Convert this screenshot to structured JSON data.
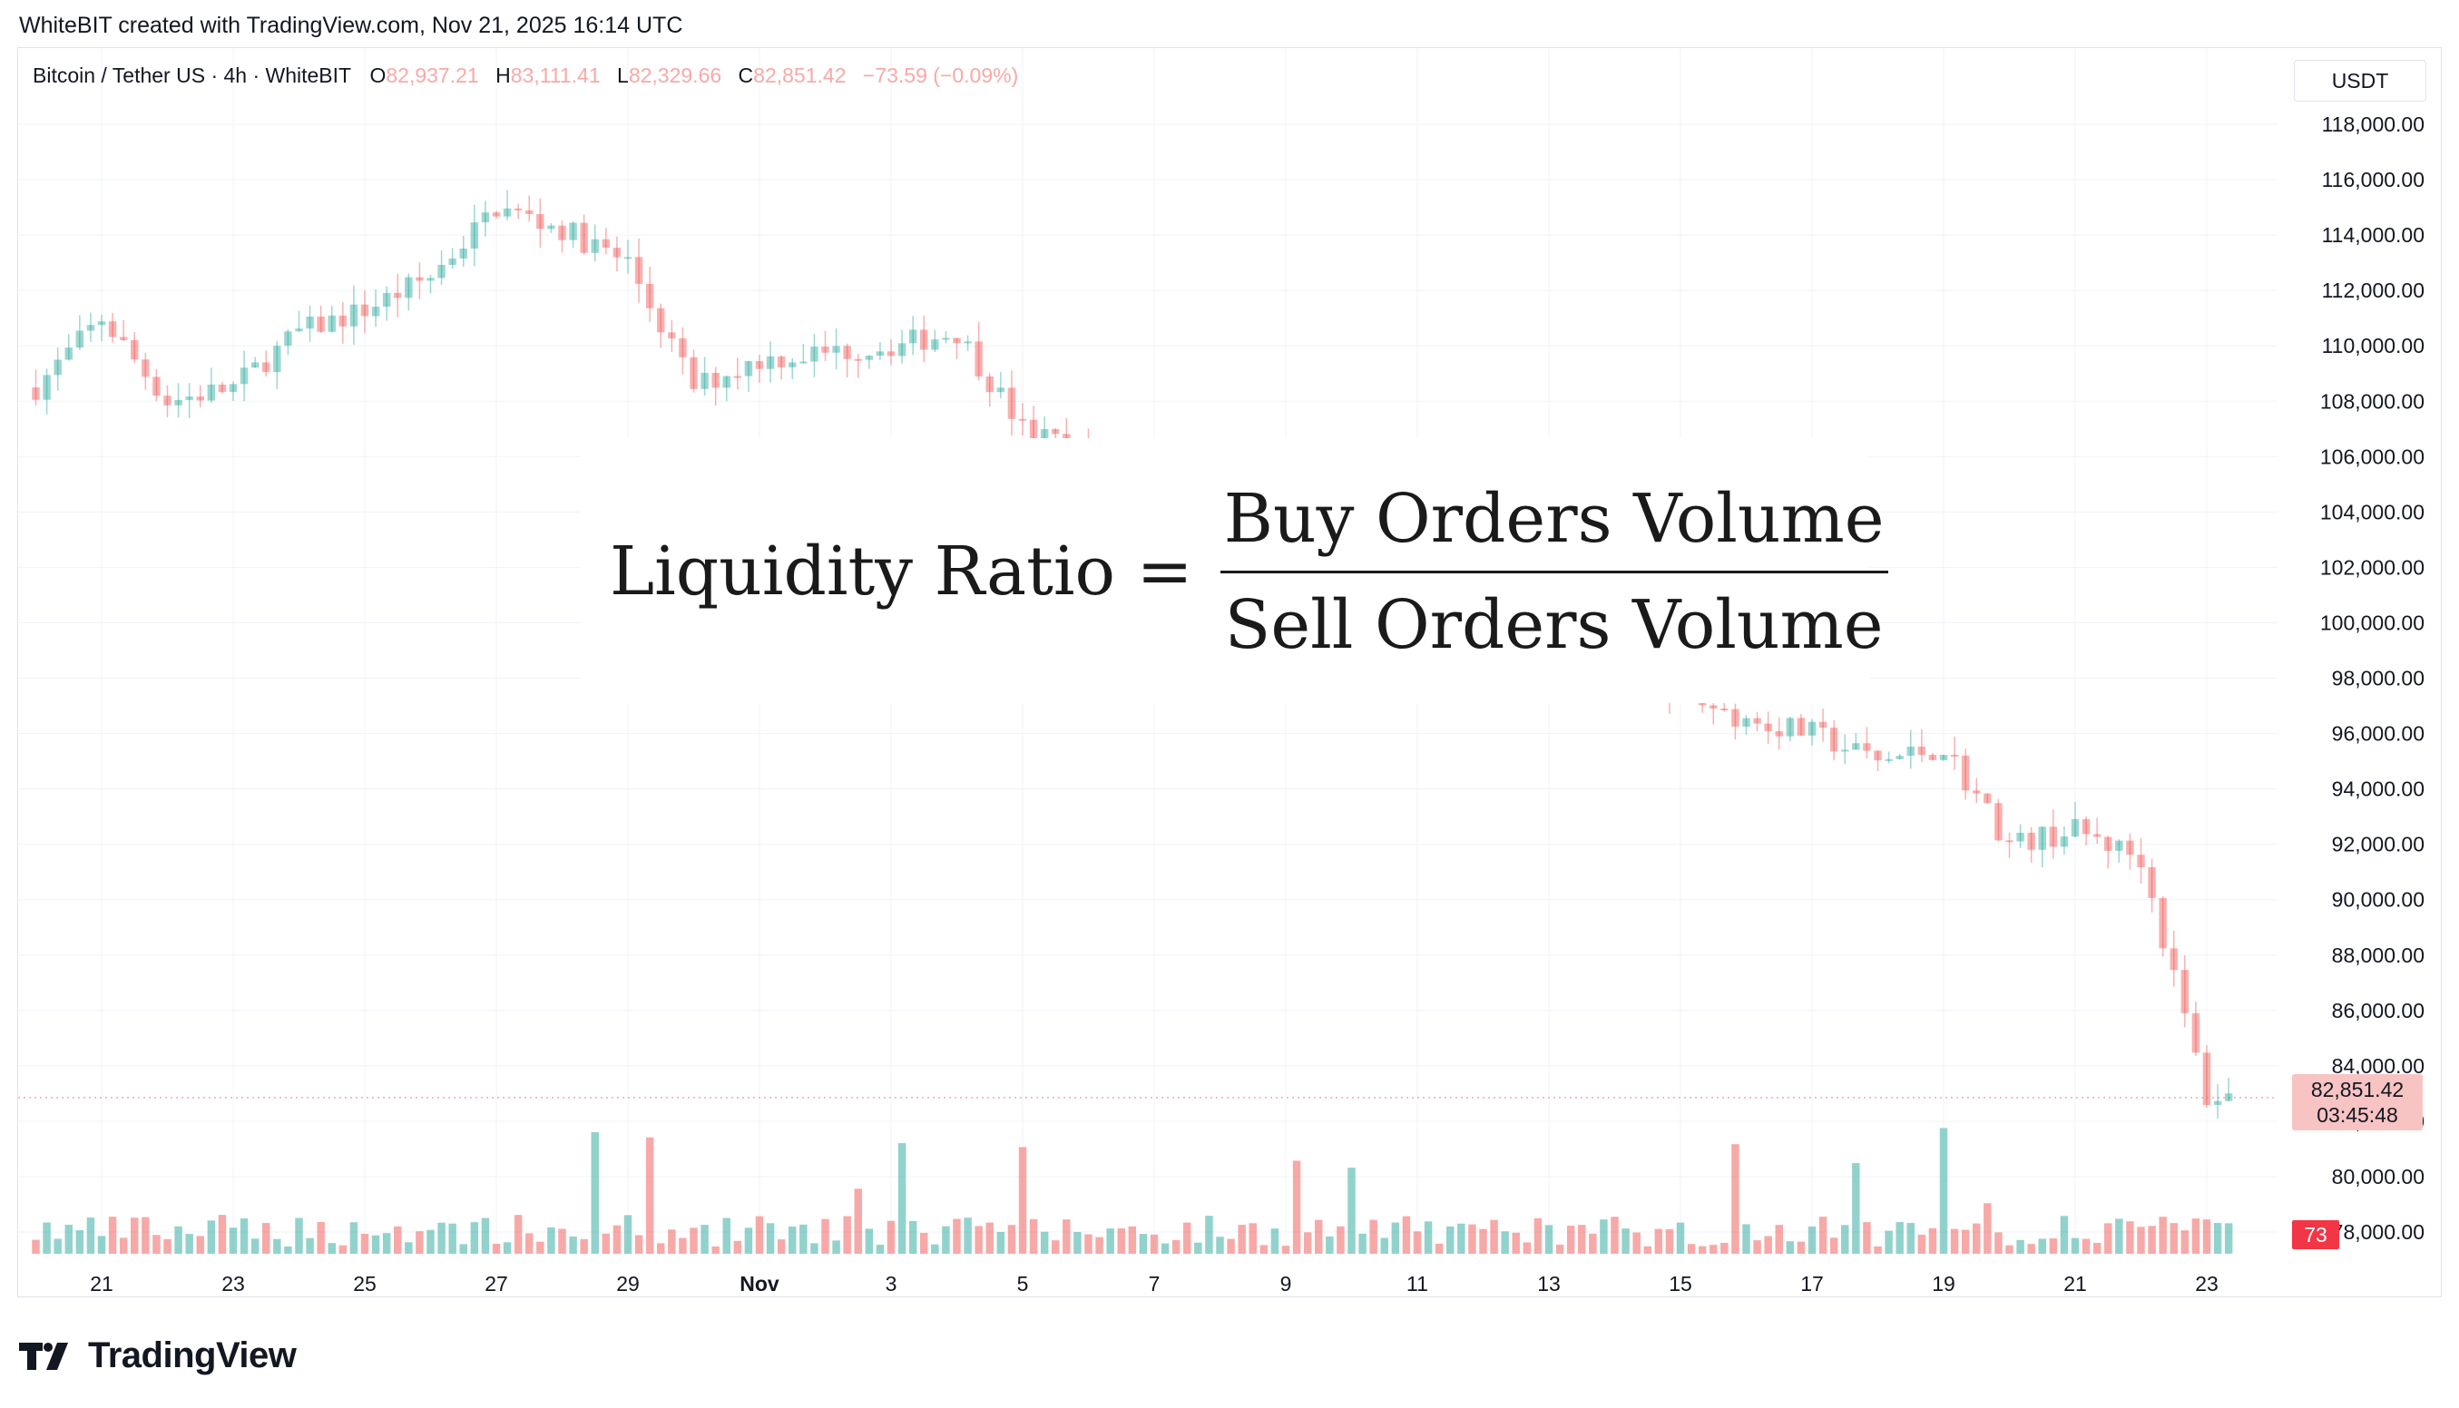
{
  "header": {
    "attribution": "WhiteBIT created with TradingView.com, Nov 21, 2025 16:14 UTC"
  },
  "legend": {
    "symbol": "Bitcoin / Tether US · 4h · WhiteBIT",
    "o_label": "O",
    "o_value": "82,937.21",
    "h_label": "H",
    "h_value": "83,111.41",
    "l_label": "L",
    "l_value": "82,329.66",
    "c_label": "C",
    "c_value": "82,851.42",
    "change": "−73.59 (−0.09%)"
  },
  "currency_button": "USDT",
  "overlay": {
    "lhs": "Liquidity Ratio =",
    "numerator": "Buy Orders Volume",
    "denominator": "Sell Orders Volume"
  },
  "price_badge": {
    "price": "82,851.42",
    "countdown": "03:45:48"
  },
  "volume_badge": "73",
  "logo": {
    "wordmark": "TradingView"
  },
  "colors": {
    "up": "#26a69a",
    "down": "#ef5350",
    "grid": "#f0f3fa",
    "text": "#131722"
  },
  "chart_data": {
    "type": "candlestick",
    "title": "Bitcoin / Tether US · 4h · WhiteBIT",
    "ylabel": "USDT",
    "ylim": [
      76000,
      120000
    ],
    "y_ticks": [
      "118,000.00",
      "116,000.00",
      "114,000.00",
      "112,000.00",
      "110,000.00",
      "108,000.00",
      "106,000.00",
      "104,000.00",
      "102,000.00",
      "100,000.00",
      "98,000.00",
      "96,000.00",
      "94,000.00",
      "92,000.00",
      "90,000.00",
      "88,000.00",
      "86,000.00",
      "84,000.00",
      "82,000.00",
      "80,000.00",
      "78,000.00"
    ],
    "x_ticks": [
      "21",
      "23",
      "25",
      "27",
      "29",
      "Nov",
      "3",
      "5",
      "7",
      "9",
      "11",
      "13",
      "15",
      "17",
      "19",
      "21",
      "23"
    ],
    "last_price": 82851.42,
    "price_anchors": [
      {
        "t": "Oct 20",
        "close": 108500
      },
      {
        "t": "Oct 21",
        "close": 111000
      },
      {
        "t": "Oct 22",
        "close": 108000
      },
      {
        "t": "Oct 23",
        "close": 108500
      },
      {
        "t": "Oct 24",
        "close": 110500
      },
      {
        "t": "Oct 25",
        "close": 111300
      },
      {
        "t": "Oct 26",
        "close": 112500
      },
      {
        "t": "Oct 27",
        "close": 115000
      },
      {
        "t": "Oct 28",
        "close": 114200
      },
      {
        "t": "Oct 29",
        "close": 113000
      },
      {
        "t": "Oct 30",
        "close": 108500
      },
      {
        "t": "Oct 31",
        "close": 109500
      },
      {
        "t": "Nov 1",
        "close": 110000
      },
      {
        "t": "Nov 2",
        "close": 110500
      },
      {
        "t": "Nov 3",
        "close": 107000
      },
      {
        "t": "Nov 14",
        "close": 96500
      },
      {
        "t": "Nov 15",
        "close": 96000
      },
      {
        "t": "Nov 16",
        "close": 95000
      },
      {
        "t": "Nov 17",
        "close": 95500
      },
      {
        "t": "Nov 18",
        "close": 92000
      },
      {
        "t": "Nov 19",
        "close": 92500
      },
      {
        "t": "Nov 20",
        "close": 91500
      },
      {
        "t": "Nov 21",
        "close": 82851.42
      }
    ],
    "grid": true,
    "legend": "top-left"
  }
}
